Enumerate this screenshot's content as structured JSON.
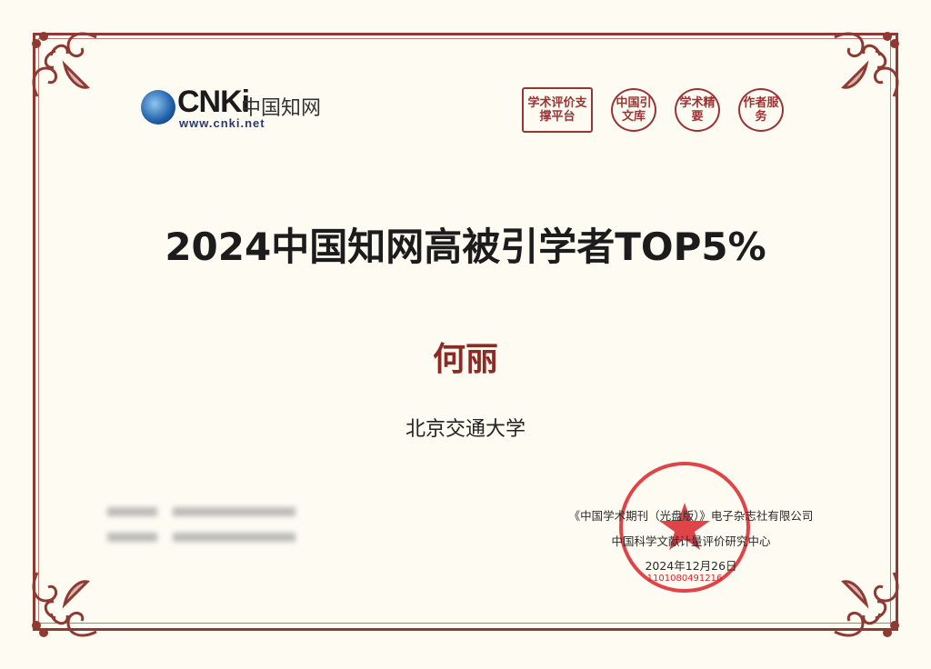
{
  "logo": {
    "brand": "CNKi",
    "name_cn": "中国知网",
    "url": "www.cnki.net"
  },
  "seals": [
    {
      "text": "学术评价支撑平台",
      "shape": "square"
    },
    {
      "text": "中国引文库",
      "shape": "circle"
    },
    {
      "text": "学术精要",
      "shape": "circle"
    },
    {
      "text": "作者服务",
      "shape": "circle"
    }
  ],
  "certificate": {
    "title": "2024中国知网高被引学者TOP5%",
    "recipient": "何丽",
    "institution": "北京交通大学"
  },
  "issuer": {
    "line1": "《中国学术期刊（光盘版）》电子杂志社有限公司",
    "line2": "中国科学文献计量评价研究中心",
    "date": "2024年12月26日"
  },
  "stamp": {
    "code": "1101080491216"
  },
  "colors": {
    "border": "#8e3a32",
    "name": "#8e2a24",
    "stamp": "#d9242a",
    "background": "#fdfbf2"
  }
}
